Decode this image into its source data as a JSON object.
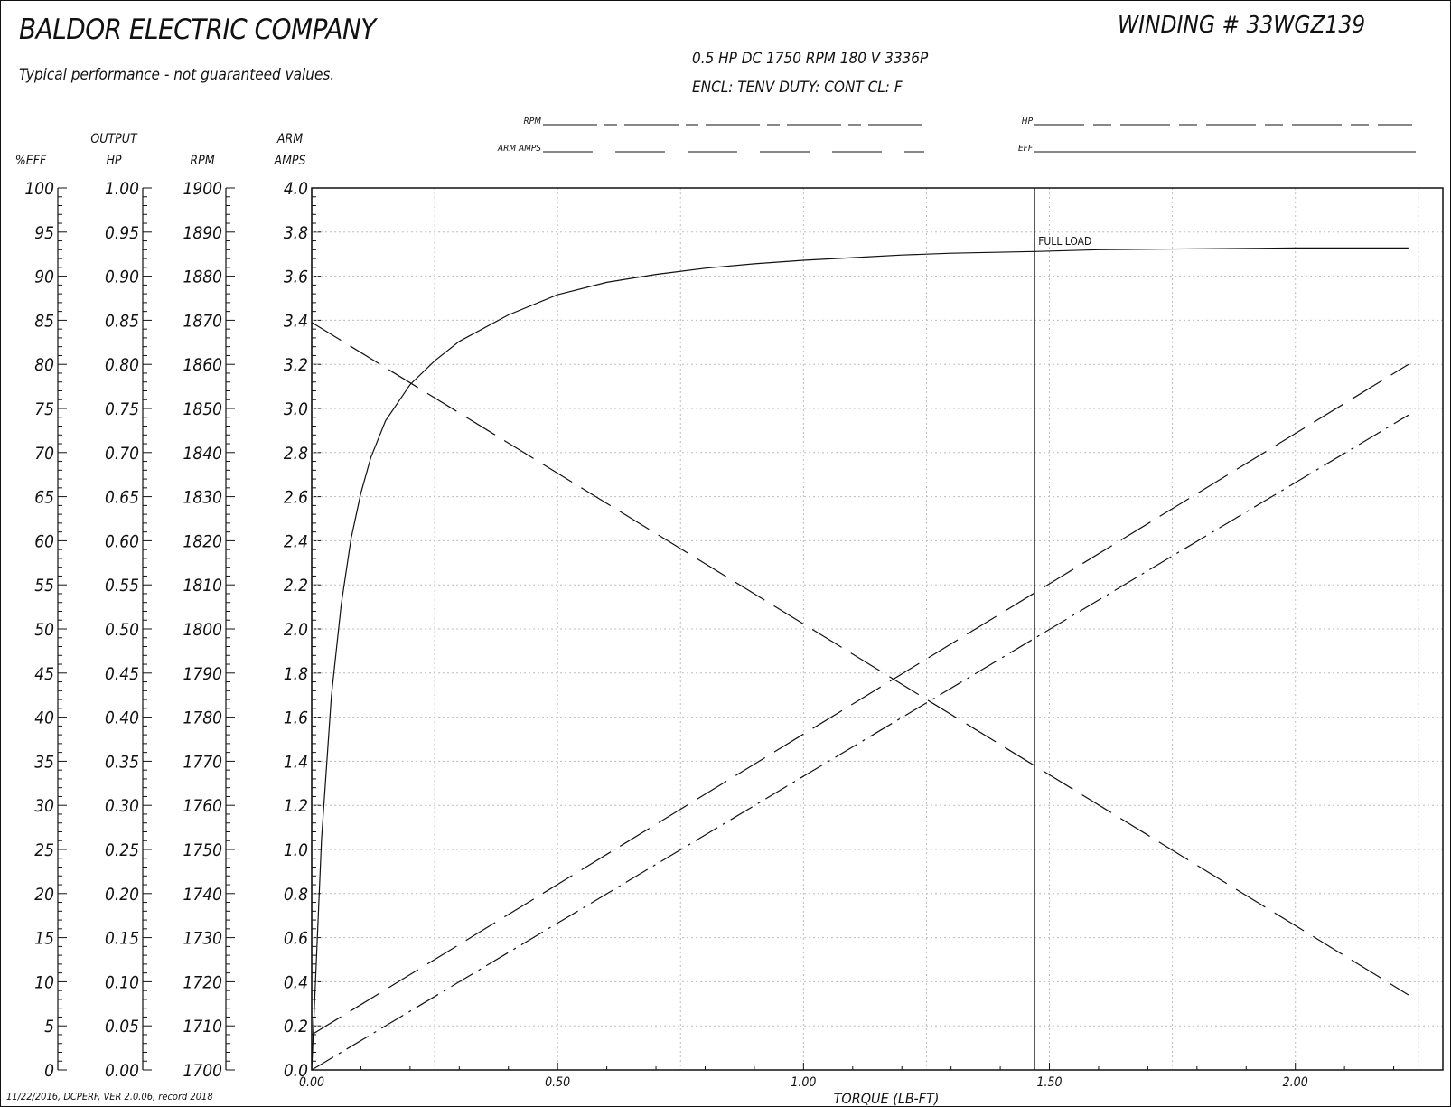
{
  "header": {
    "company": "BALDOR ELECTRIC COMPANY",
    "subtitle": "Typical performance - not guaranteed values.",
    "winding": "WINDING # 33WGZ139",
    "spec_line1": "0.5 HP  DC  1750 RPM  180 V  3336P",
    "spec_line2": "ENCL: TENV  DUTY: CONT  CL: F"
  },
  "legend": {
    "rpm": "RPM",
    "arm_amps": "ARM AMPS",
    "hp": "HP",
    "eff": "EFF"
  },
  "footer": "11/22/2016, DCPERF, VER 2.0.06, record 2018",
  "chart_data": {
    "type": "line",
    "xlabel": "TORQUE (LB-FT)",
    "x_ticks": [
      "0.00",
      "0.50",
      "1.00",
      "1.50",
      "2.00"
    ],
    "xlim": [
      0,
      2.3
    ],
    "grid": true,
    "full_load": {
      "x": 1.47,
      "label": "FULL LOAD"
    },
    "axes": [
      {
        "id": "eff",
        "header": [
          "",
          "%EFF"
        ],
        "min": 0,
        "max": 100,
        "ticks": [
          "0",
          "5",
          "10",
          "15",
          "20",
          "25",
          "30",
          "35",
          "40",
          "45",
          "50",
          "55",
          "60",
          "65",
          "70",
          "75",
          "80",
          "85",
          "90",
          "95",
          "100"
        ]
      },
      {
        "id": "hp",
        "header": [
          "OUTPUT",
          "HP"
        ],
        "min": 0,
        "max": 1,
        "ticks": [
          "0.00",
          "0.05",
          "0.10",
          "0.15",
          "0.20",
          "0.25",
          "0.30",
          "0.35",
          "0.40",
          "0.45",
          "0.50",
          "0.55",
          "0.60",
          "0.65",
          "0.70",
          "0.75",
          "0.80",
          "0.85",
          "0.90",
          "0.95",
          "1.00"
        ]
      },
      {
        "id": "rpm",
        "header": [
          "",
          "RPM"
        ],
        "min": 1700,
        "max": 1900,
        "ticks": [
          "1700",
          "1710",
          "1720",
          "1730",
          "1740",
          "1750",
          "1760",
          "1770",
          "1780",
          "1790",
          "1800",
          "1810",
          "1820",
          "1830",
          "1840",
          "1850",
          "1860",
          "1870",
          "1880",
          "1890",
          "1900"
        ]
      },
      {
        "id": "amps",
        "header": [
          "ARM",
          "AMPS"
        ],
        "min": 0,
        "max": 4,
        "ticks": [
          "0.0",
          "0.2",
          "0.4",
          "0.6",
          "0.8",
          "1.0",
          "1.2",
          "1.4",
          "1.6",
          "1.8",
          "2.0",
          "2.2",
          "2.4",
          "2.6",
          "2.8",
          "3.0",
          "3.2",
          "3.4",
          "3.6",
          "3.8",
          "4.0"
        ]
      }
    ],
    "series": [
      {
        "id": "eff",
        "axis": "eff",
        "style": "solid",
        "x": [
          0,
          0.02,
          0.04,
          0.06,
          0.08,
          0.1,
          0.12,
          0.15,
          0.2,
          0.25,
          0.3,
          0.4,
          0.5,
          0.6,
          0.7,
          0.8,
          0.9,
          1.0,
          1.1,
          1.2,
          1.3,
          1.47,
          1.6,
          1.8,
          2.0,
          2.23
        ],
        "y": [
          0,
          26.2,
          42.4,
          52.8,
          60.2,
          65.4,
          69.4,
          73.6,
          77.7,
          80.4,
          82.6,
          85.6,
          87.9,
          89.3,
          90.2,
          90.9,
          91.4,
          91.8,
          92.1,
          92.4,
          92.6,
          92.8,
          93.0,
          93.1,
          93.2,
          93.2
        ]
      },
      {
        "id": "rpm",
        "axis": "rpm",
        "style": "long-dash",
        "x": [
          0,
          2.23
        ],
        "y": [
          1869.5,
          1717
        ]
      },
      {
        "id": "hp",
        "axis": "hp",
        "style": "long-dash",
        "x": [
          0,
          2.23
        ],
        "y": [
          0.04,
          0.8
        ]
      },
      {
        "id": "amps",
        "axis": "amps",
        "style": "dash-dot",
        "x": [
          0,
          2.23
        ],
        "y": [
          0,
          2.97
        ]
      }
    ]
  }
}
